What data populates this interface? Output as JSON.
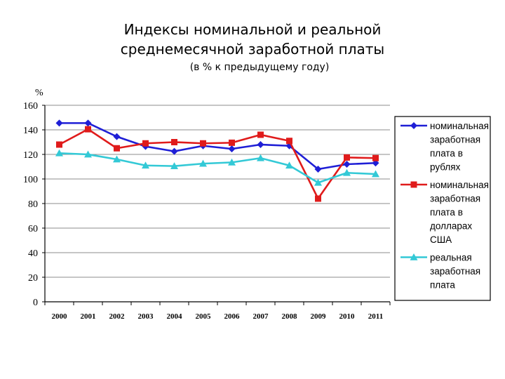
{
  "chart_data": {
    "type": "line",
    "title_lines": [
      "Индексы номинальной и реальной",
      "среднемесячной заработной платы"
    ],
    "subtitle": "(в % к предыдущему году)",
    "ylabel": "%",
    "xlabel": "",
    "ylim": [
      0,
      160
    ],
    "yticks": [
      0,
      20,
      40,
      60,
      80,
      100,
      120,
      140,
      160
    ],
    "grid": true,
    "legend_position": "right",
    "categories": [
      "2000",
      "2001",
      "2002",
      "2003",
      "2004",
      "2005",
      "2006",
      "2007",
      "2008",
      "2009",
      "2010",
      "2011"
    ],
    "series": [
      {
        "name_lines": [
          "номинальная",
          "заработная",
          "плата в",
          "рублях"
        ],
        "color": "#1f1fd6",
        "marker": "diamond",
        "values": [
          145.5,
          145.5,
          134.5,
          126.5,
          122.5,
          127,
          124.5,
          128,
          127,
          108,
          112,
          113
        ]
      },
      {
        "name_lines": [
          "номинальная",
          "заработная",
          "плата в",
          "долларах",
          "США"
        ],
        "color": "#e01b1b",
        "marker": "square",
        "values": [
          128,
          140.5,
          125,
          129,
          130,
          129,
          129.5,
          136,
          131,
          84,
          117.5,
          117
        ]
      },
      {
        "name_lines": [
          "реальная",
          "заработная",
          "плата"
        ],
        "color": "#33c9d6",
        "marker": "triangle",
        "values": [
          121,
          120,
          116,
          111,
          110.5,
          112.5,
          113.5,
          117,
          111,
          97,
          105,
          104
        ]
      }
    ]
  }
}
